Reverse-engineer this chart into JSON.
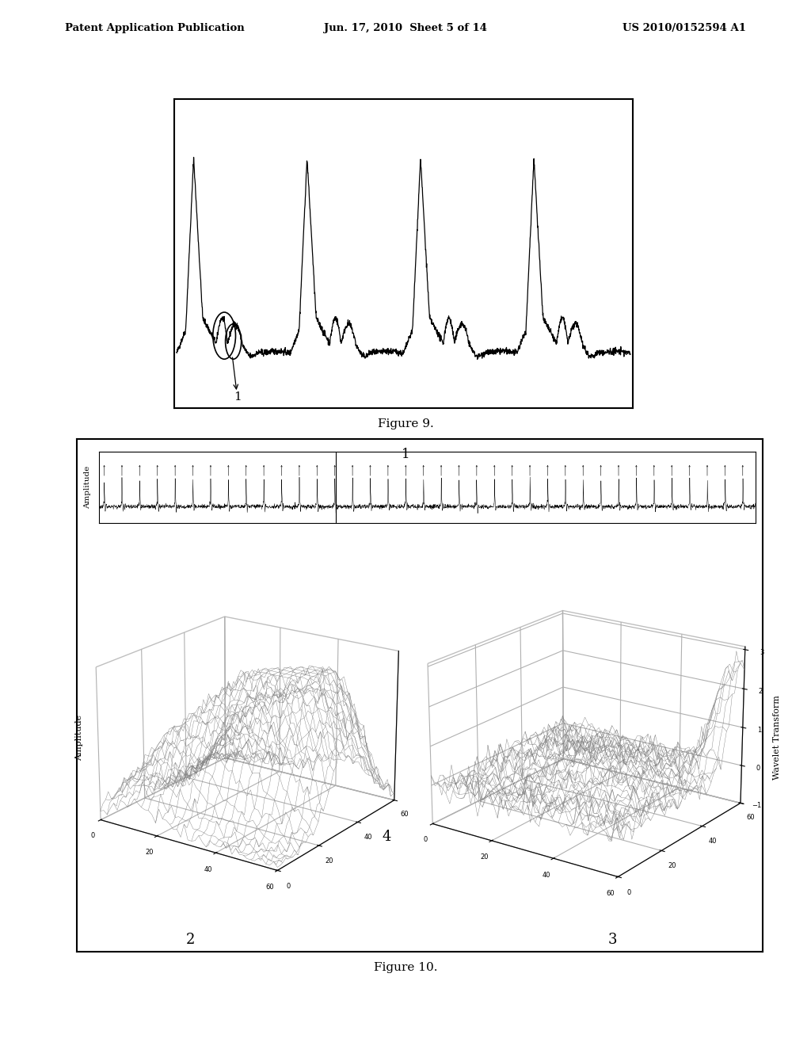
{
  "background_color": "#ffffff",
  "header_left": "Patent Application Publication",
  "header_center": "Jun. 17, 2010  Sheet 5 of 14",
  "header_right": "US 2010/0152594 A1",
  "fig9_caption": "Figure 9.",
  "fig10_caption": "Figure 10.",
  "fig10_label1": "1",
  "fig10_label2": "2",
  "fig10_label3": "3",
  "fig10_label4": "4",
  "fig9_label1": "1",
  "fig10_ylabel_signal": "Amplitude",
  "fig10_ylabel_3d_left": "Amplitude",
  "fig10_ylabel_3d_right": "Wavelet Transform",
  "fig10_3d_ticks": [
    0,
    20,
    40,
    60
  ],
  "fig10_3d_zticks_right": [
    -1,
    0,
    1,
    2,
    3
  ]
}
